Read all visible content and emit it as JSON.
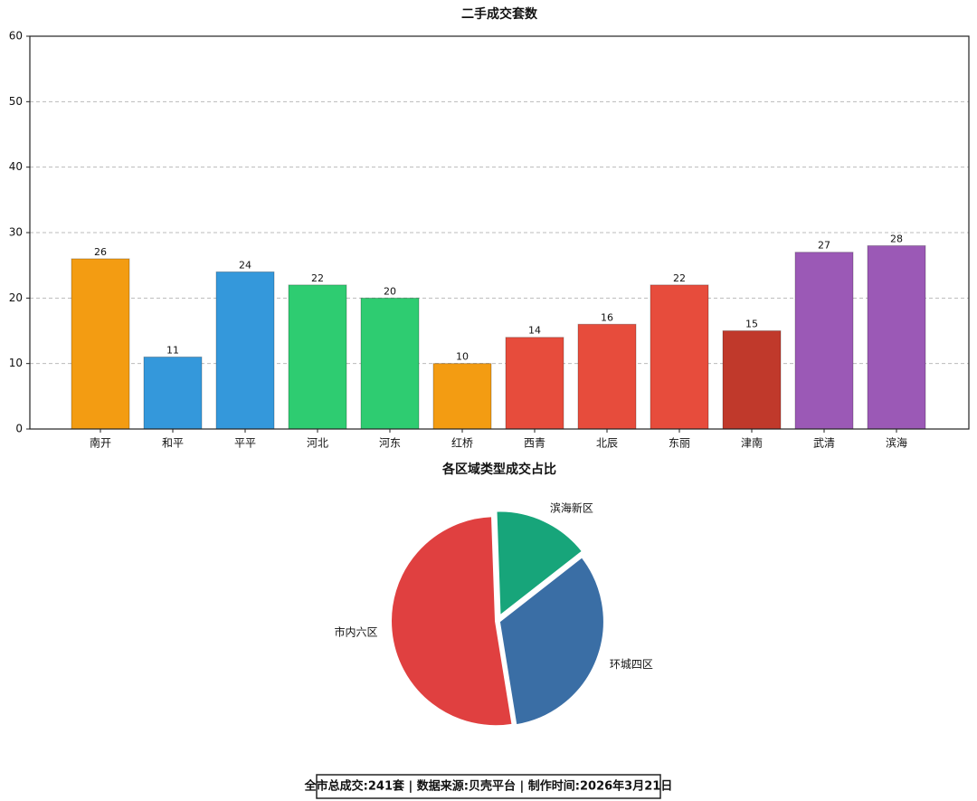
{
  "chart_data": [
    {
      "type": "bar",
      "title": "二手成交套数",
      "categories": [
        "南开",
        "和平",
        "平平",
        "河北",
        "河东",
        "红桥",
        "西青",
        "北辰",
        "东丽",
        "津南",
        "武清",
        "滨海"
      ],
      "values": [
        26,
        11,
        24,
        22,
        20,
        10,
        14,
        16,
        22,
        15,
        27,
        28
      ],
      "colors": [
        "#f39c12",
        "#3498db",
        "#3498db",
        "#2ecc71",
        "#2ecc71",
        "#f39c12",
        "#e74c3c",
        "#e74c3c",
        "#e74c3c",
        "#c0392b",
        "#9b59b6",
        "#9b59b6"
      ],
      "ylim": [
        0,
        60
      ],
      "yticks": [
        0,
        10,
        20,
        30,
        40,
        50,
        60
      ],
      "grid": true
    },
    {
      "type": "pie",
      "title": "各区域类型成交占比",
      "categories": [
        "滨海新区",
        "环城四区",
        "市内六区"
      ],
      "values": [
        15,
        33,
        52
      ],
      "colors": [
        "#17a57a",
        "#3a6ea5",
        "#e04040"
      ]
    }
  ],
  "footer": "全市总成交:241套 | 数据来源:贝壳平台 | 制作时间:2026年3月21日"
}
